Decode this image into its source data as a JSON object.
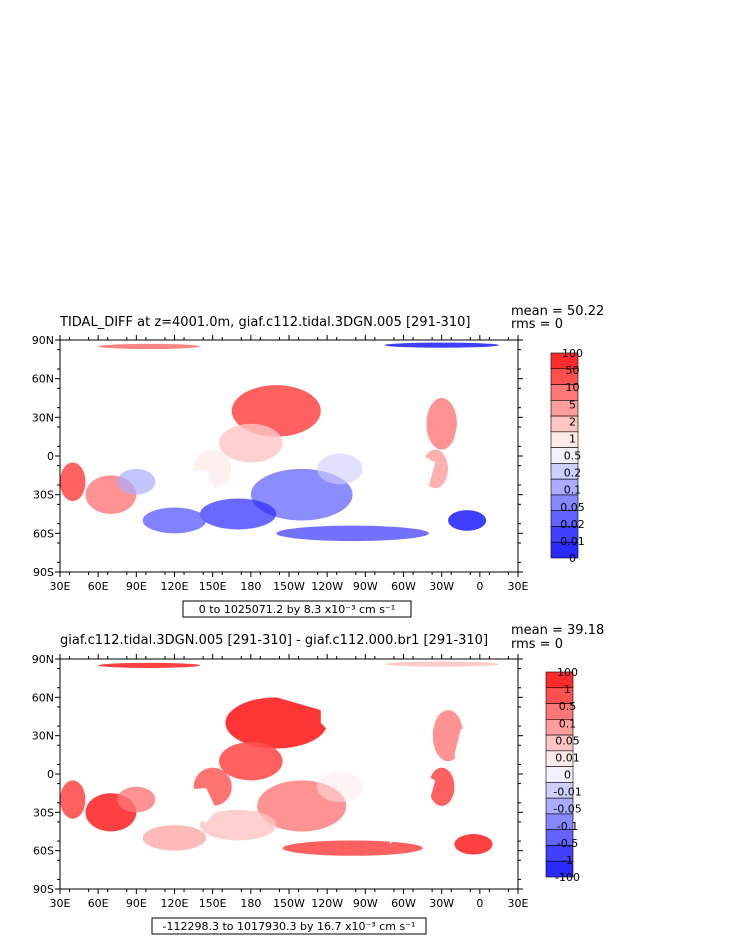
{
  "chart_data": [
    {
      "type": "heatmap",
      "title": "TIDAL_DIFF at z=4001.0m, giaf.c112.tidal.3DGN.005 [291-310]",
      "mean_label": "mean = 50.22",
      "rms_label": "rms = 0",
      "range_label": "0 to 1025071.2 by 8.3 x10⁻³ cm s⁻¹",
      "x_ticks": [
        "30E",
        "60E",
        "90E",
        "120E",
        "150E",
        "180",
        "150W",
        "120W",
        "90W",
        "60W",
        "30W",
        "0",
        "30E"
      ],
      "y_ticks": [
        "90N",
        "60N",
        "30N",
        "0",
        "30S",
        "60S",
        "90S"
      ],
      "xlim": [
        30,
        390
      ],
      "ylim": [
        -90,
        90
      ],
      "grid": false,
      "legend_position": "right",
      "colorbar": {
        "levels": [
          "100",
          "50",
          "10",
          "5",
          "2",
          "1",
          "0.5",
          "0.2",
          "0.1",
          "0.05",
          "0.02",
          "0.01",
          "0"
        ],
        "colors": [
          "#ff2b2b",
          "#ff5050",
          "#ff7777",
          "#ff9c9c",
          "#ffc4c4",
          "#ffe9e9",
          "#f2f2ff",
          "#cfcfff",
          "#ababff",
          "#8787ff",
          "#6363ff",
          "#4040ff",
          "#2a2aff"
        ]
      }
    },
    {
      "type": "heatmap",
      "title": "giaf.c112.tidal.3DGN.005 [291-310] - giaf.c112.000.br1 [291-310]",
      "mean_label": "mean = 39.18",
      "rms_label": "rms = 0",
      "range_label": "-112298.3 to 1017930.3 by 16.7 x10⁻³ cm s⁻¹",
      "x_ticks": [
        "30E",
        "60E",
        "90E",
        "120E",
        "150E",
        "180",
        "150W",
        "120W",
        "90W",
        "60W",
        "30W",
        "0",
        "30E"
      ],
      "y_ticks": [
        "90N",
        "60N",
        "30N",
        "0",
        "30S",
        "60S",
        "90S"
      ],
      "xlim": [
        30,
        390
      ],
      "ylim": [
        -90,
        90
      ],
      "grid": false,
      "legend_position": "right",
      "colorbar": {
        "levels": [
          "100",
          "1",
          "0.5",
          "0.1",
          "0.05",
          "0.01",
          "0",
          "-0.01",
          "-0.05",
          "-0.1",
          "-0.5",
          "-1",
          "-100"
        ],
        "colors": [
          "#ff2b2b",
          "#ff5050",
          "#ff7777",
          "#ff9c9c",
          "#ffc4c4",
          "#ffe9e9",
          "#f2f2ff",
          "#cfcfff",
          "#ababff",
          "#8787ff",
          "#6363ff",
          "#4040ff",
          "#2a2aff"
        ]
      }
    }
  ]
}
